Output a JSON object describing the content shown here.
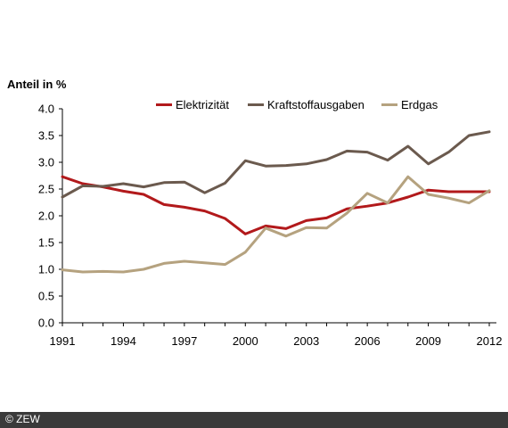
{
  "chart_data": {
    "type": "line",
    "ylabel": "Anteil in %",
    "ylim": [
      0,
      4
    ],
    "yticks": [
      "0.0",
      "0.5",
      "1.0",
      "1.5",
      "2.0",
      "2.5",
      "3.0",
      "3.5",
      "4.0"
    ],
    "x": [
      1991,
      1992,
      1993,
      1994,
      1995,
      1996,
      1997,
      1998,
      1999,
      2000,
      2001,
      2002,
      2003,
      2004,
      2005,
      2006,
      2007,
      2008,
      2009,
      2010,
      2011,
      2012
    ],
    "xticks": [
      "1991",
      "1994",
      "1997",
      "2000",
      "2003",
      "2006",
      "2009",
      "2012"
    ],
    "legend_position": "top",
    "grid": false,
    "series": [
      {
        "name": "Elektrizität",
        "color": "#b2191b",
        "values": [
          2.73,
          2.6,
          2.54,
          2.46,
          2.4,
          2.21,
          2.16,
          2.09,
          1.95,
          1.66,
          1.81,
          1.76,
          1.91,
          1.96,
          2.13,
          2.18,
          2.24,
          2.35,
          2.48,
          2.45,
          2.45,
          2.45
        ]
      },
      {
        "name": "Kraftstoffausgaben",
        "color": "#6b5a4e",
        "values": [
          2.35,
          2.56,
          2.55,
          2.6,
          2.54,
          2.62,
          2.63,
          2.43,
          2.61,
          3.03,
          2.93,
          2.94,
          2.97,
          3.05,
          3.21,
          3.19,
          3.04,
          3.3,
          2.97,
          3.19,
          3.5,
          3.57
        ]
      },
      {
        "name": "Erdgas",
        "color": "#b5a27f",
        "values": [
          0.99,
          0.95,
          0.96,
          0.95,
          1.0,
          1.11,
          1.15,
          1.12,
          1.09,
          1.32,
          1.77,
          1.62,
          1.78,
          1.77,
          2.05,
          2.42,
          2.24,
          2.73,
          2.4,
          2.33,
          2.24,
          2.47
        ]
      }
    ]
  },
  "footer": {
    "copyright": "© ZEW"
  }
}
